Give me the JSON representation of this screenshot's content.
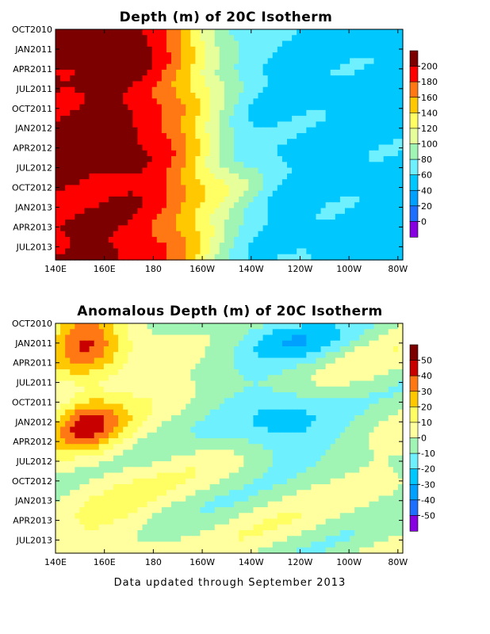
{
  "chart_data": [
    {
      "type": "heatmap",
      "title": "Depth (m) of 20C Isotherm",
      "xlabel": "",
      "ylabel": "",
      "x_tick_labels": [
        "140E",
        "160E",
        "180",
        "160W",
        "140W",
        "120W",
        "100W",
        "80W"
      ],
      "x_ticks_lon_east": [
        140,
        160,
        180,
        200,
        220,
        240,
        260,
        280
      ],
      "x_range": [
        140,
        282
      ],
      "y_tick_labels": [
        "OCT2010",
        "JAN2011",
        "APR2011",
        "JUL2011",
        "OCT2011",
        "JAN2012",
        "APR2012",
        "JUL2012",
        "OCT2012",
        "JAN2013",
        "APR2013",
        "JUL2013"
      ],
      "y_range": [
        "OCT2010",
        "SEP2013"
      ],
      "colorbar": {
        "labels": [
          "200",
          "180",
          "160",
          "140",
          "120",
          "100",
          "80",
          "60",
          "40",
          "20",
          "0"
        ],
        "levels": [
          0,
          20,
          40,
          60,
          80,
          100,
          120,
          140,
          160,
          180,
          200
        ],
        "colors": [
          "#8700e0",
          "#1e6eff",
          "#00a0ff",
          "#00c8ff",
          "#6ef0ff",
          "#a0f5b4",
          "#e6ff9b",
          "#ffff64",
          "#ffc800",
          "#ff7814",
          "#ff0000",
          "#7d0000"
        ]
      },
      "grid": false,
      "legend_position": "right"
    },
    {
      "type": "heatmap",
      "title": "Anomalous Depth (m) of 20C Isotherm",
      "xlabel": "",
      "ylabel": "",
      "x_tick_labels": [
        "140E",
        "160E",
        "180",
        "160W",
        "140W",
        "120W",
        "100W",
        "80W"
      ],
      "x_ticks_lon_east": [
        140,
        160,
        180,
        200,
        220,
        240,
        260,
        280
      ],
      "x_range": [
        140,
        282
      ],
      "y_tick_labels": [
        "OCT2010",
        "JAN2011",
        "APR2011",
        "JUL2011",
        "OCT2011",
        "JAN2012",
        "APR2012",
        "JUL2012",
        "OCT2012",
        "JAN2013",
        "APR2013",
        "JUL2013"
      ],
      "y_range": [
        "OCT2010",
        "SEP2013"
      ],
      "colorbar": {
        "labels": [
          "50",
          "40",
          "30",
          "20",
          "10",
          "0",
          "-10",
          "-20",
          "-30",
          "-40",
          "-50"
        ],
        "levels": [
          -50,
          -40,
          -30,
          -20,
          -10,
          0,
          10,
          20,
          30,
          40,
          50
        ],
        "colors": [
          "#8700e0",
          "#1e6eff",
          "#00a0ff",
          "#00c8ff",
          "#6ef0ff",
          "#a0f5b4",
          "#ffffa0",
          "#ffff64",
          "#ffc800",
          "#ff7814",
          "#c80000",
          "#7d0000"
        ]
      },
      "grid": false,
      "legend_position": "right"
    }
  ],
  "footer": "Data updated through September 2013"
}
